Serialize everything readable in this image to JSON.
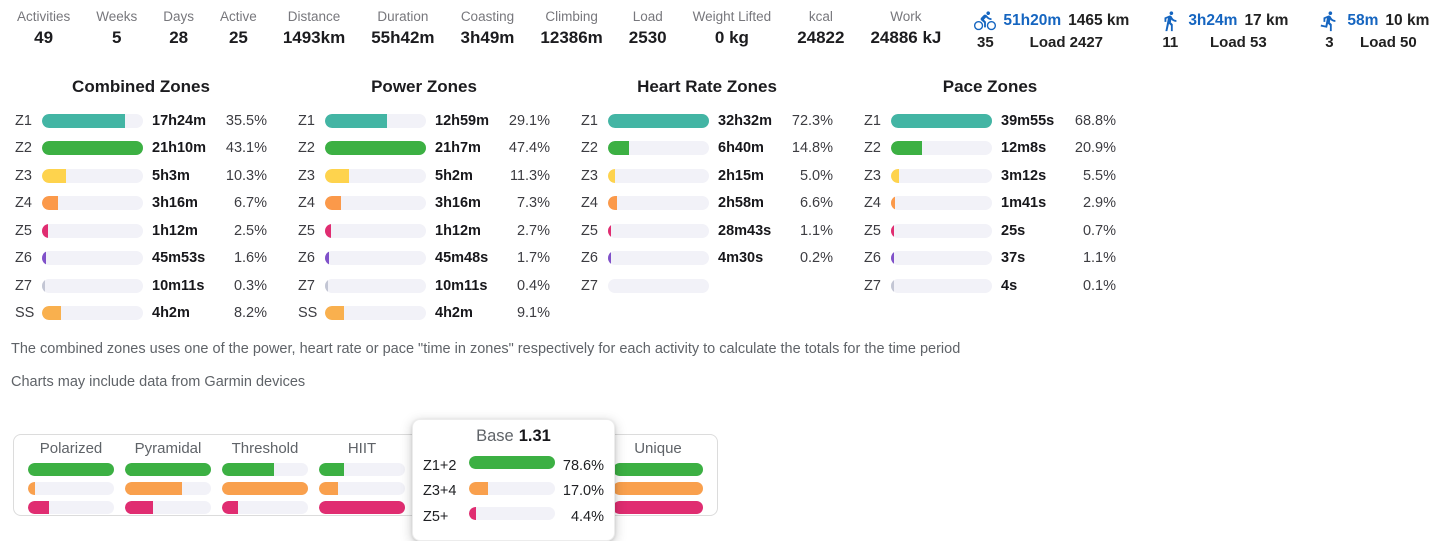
{
  "header": {
    "stats": [
      {
        "label": "Activities",
        "value": "49"
      },
      {
        "label": "Weeks",
        "value": "5"
      },
      {
        "label": "Days",
        "value": "28"
      },
      {
        "label": "Active",
        "value": "25"
      },
      {
        "label": "Distance",
        "value": "1493km"
      },
      {
        "label": "Duration",
        "value": "55h42m"
      },
      {
        "label": "Coasting",
        "value": "3h49m"
      },
      {
        "label": "Climbing",
        "value": "12386m"
      },
      {
        "label": "Load",
        "value": "2530"
      },
      {
        "label": "Weight Lifted",
        "value": "0 kg"
      },
      {
        "label": "kcal",
        "value": "24822"
      },
      {
        "label": "Work",
        "value": "24886 kJ"
      }
    ],
    "sports": [
      {
        "icon": "bike-icon",
        "time": "51h20m",
        "distance": "1465 km",
        "count": "35",
        "load": "Load 2427"
      },
      {
        "icon": "walk-icon",
        "time": "3h24m",
        "distance": "17 km",
        "count": "11",
        "load": "Load 53"
      },
      {
        "icon": "run-icon",
        "time": "58m",
        "distance": "10 km",
        "count": "3",
        "load": "Load 50"
      }
    ]
  },
  "colors": {
    "accent_blue": "#1565c0",
    "track": "#f2f2f8",
    "zone": {
      "Z1": "#43b5a4",
      "Z2": "#3cb043",
      "Z3": "#fed34d",
      "Z4": "#fb994a",
      "Z5": "#e02d71",
      "Z6": "#8051c9",
      "Z7": "#c3c6d4",
      "SS": "#f9b04e"
    },
    "dist": {
      "green": "#3cb043",
      "orange": "#f9a04d",
      "pink": "#e02d71"
    }
  },
  "chart_data": [
    {
      "group": "zones",
      "type": "bar",
      "title": "Combined Zones",
      "categories": [
        "Z1",
        "Z2",
        "Z3",
        "Z4",
        "Z5",
        "Z6",
        "Z7",
        "SS"
      ],
      "times": [
        "17h24m",
        "21h10m",
        "5h3m",
        "3h16m",
        "1h12m",
        "45m53s",
        "10m11s",
        "4h2m"
      ],
      "pcts": [
        "35.5%",
        "43.1%",
        "10.3%",
        "6.7%",
        "2.5%",
        "1.6%",
        "0.3%",
        "8.2%"
      ],
      "values": [
        35.5,
        43.1,
        10.3,
        6.7,
        2.5,
        1.6,
        0.3,
        8.2
      ],
      "ylabel": "percent of time",
      "bars_scaled_to_max": true
    },
    {
      "group": "zones",
      "type": "bar",
      "title": "Power Zones",
      "categories": [
        "Z1",
        "Z2",
        "Z3",
        "Z4",
        "Z5",
        "Z6",
        "Z7",
        "SS"
      ],
      "times": [
        "12h59m",
        "21h7m",
        "5h2m",
        "3h16m",
        "1h12m",
        "45m48s",
        "10m11s",
        "4h2m"
      ],
      "pcts": [
        "29.1%",
        "47.4%",
        "11.3%",
        "7.3%",
        "2.7%",
        "1.7%",
        "0.4%",
        "9.1%"
      ],
      "values": [
        29.1,
        47.4,
        11.3,
        7.3,
        2.7,
        1.7,
        0.4,
        9.1
      ],
      "ylabel": "percent of time",
      "bars_scaled_to_max": true
    },
    {
      "group": "zones",
      "type": "bar",
      "title": "Heart Rate Zones",
      "categories": [
        "Z1",
        "Z2",
        "Z3",
        "Z4",
        "Z5",
        "Z6",
        "Z7"
      ],
      "times": [
        "32h32m",
        "6h40m",
        "2h15m",
        "2h58m",
        "28m43s",
        "4m30s",
        ""
      ],
      "pcts": [
        "72.3%",
        "14.8%",
        "5.0%",
        "6.6%",
        "1.1%",
        "0.2%",
        ""
      ],
      "values": [
        72.3,
        14.8,
        5.0,
        6.6,
        1.1,
        0.2,
        null
      ],
      "ylabel": "percent of time",
      "bars_scaled_to_max": true
    },
    {
      "group": "zones",
      "type": "bar",
      "title": "Pace Zones",
      "categories": [
        "Z1",
        "Z2",
        "Z3",
        "Z4",
        "Z5",
        "Z6",
        "Z7"
      ],
      "times": [
        "39m55s",
        "12m8s",
        "3m12s",
        "1m41s",
        "25s",
        "37s",
        "4s"
      ],
      "pcts": [
        "68.8%",
        "20.9%",
        "5.5%",
        "2.9%",
        "0.7%",
        "1.1%",
        "0.1%"
      ],
      "values": [
        68.8,
        20.9,
        5.5,
        2.9,
        0.7,
        1.1,
        0.1
      ],
      "ylabel": "percent of time",
      "bars_scaled_to_max": true
    },
    {
      "group": "popup",
      "type": "bar",
      "title": "Base",
      "score": "1.31",
      "categories": [
        "Z1+2",
        "Z3+4",
        "Z5+"
      ],
      "pcts": [
        "78.6%",
        "17.0%",
        "4.4%"
      ],
      "values": [
        78.6,
        17.0,
        4.4
      ],
      "colors": [
        "green",
        "orange",
        "pink"
      ],
      "bars_scaled_to_max": true
    },
    {
      "group": "archetypes",
      "type": "bar",
      "categories": [
        "Polarized",
        "Pyramidal",
        "Threshold",
        "HIIT",
        "Unique"
      ],
      "series": [
        {
          "name": "low-zone-bar",
          "color": "green",
          "values": [
            100,
            100,
            60,
            29,
            100
          ]
        },
        {
          "name": "mid-zone-bar",
          "color": "orange",
          "values": [
            8,
            66,
            100,
            22,
            100
          ]
        },
        {
          "name": "high-zone-bar",
          "color": "pink",
          "values": [
            24,
            33,
            19,
            100,
            100
          ]
        }
      ]
    }
  ],
  "notes": [
    "The combined zones uses one of the power, heart rate or pace \"time in zones\" respectively for each activity to calculate the totals for the time period",
    "Charts may include data from Garmin devices"
  ]
}
